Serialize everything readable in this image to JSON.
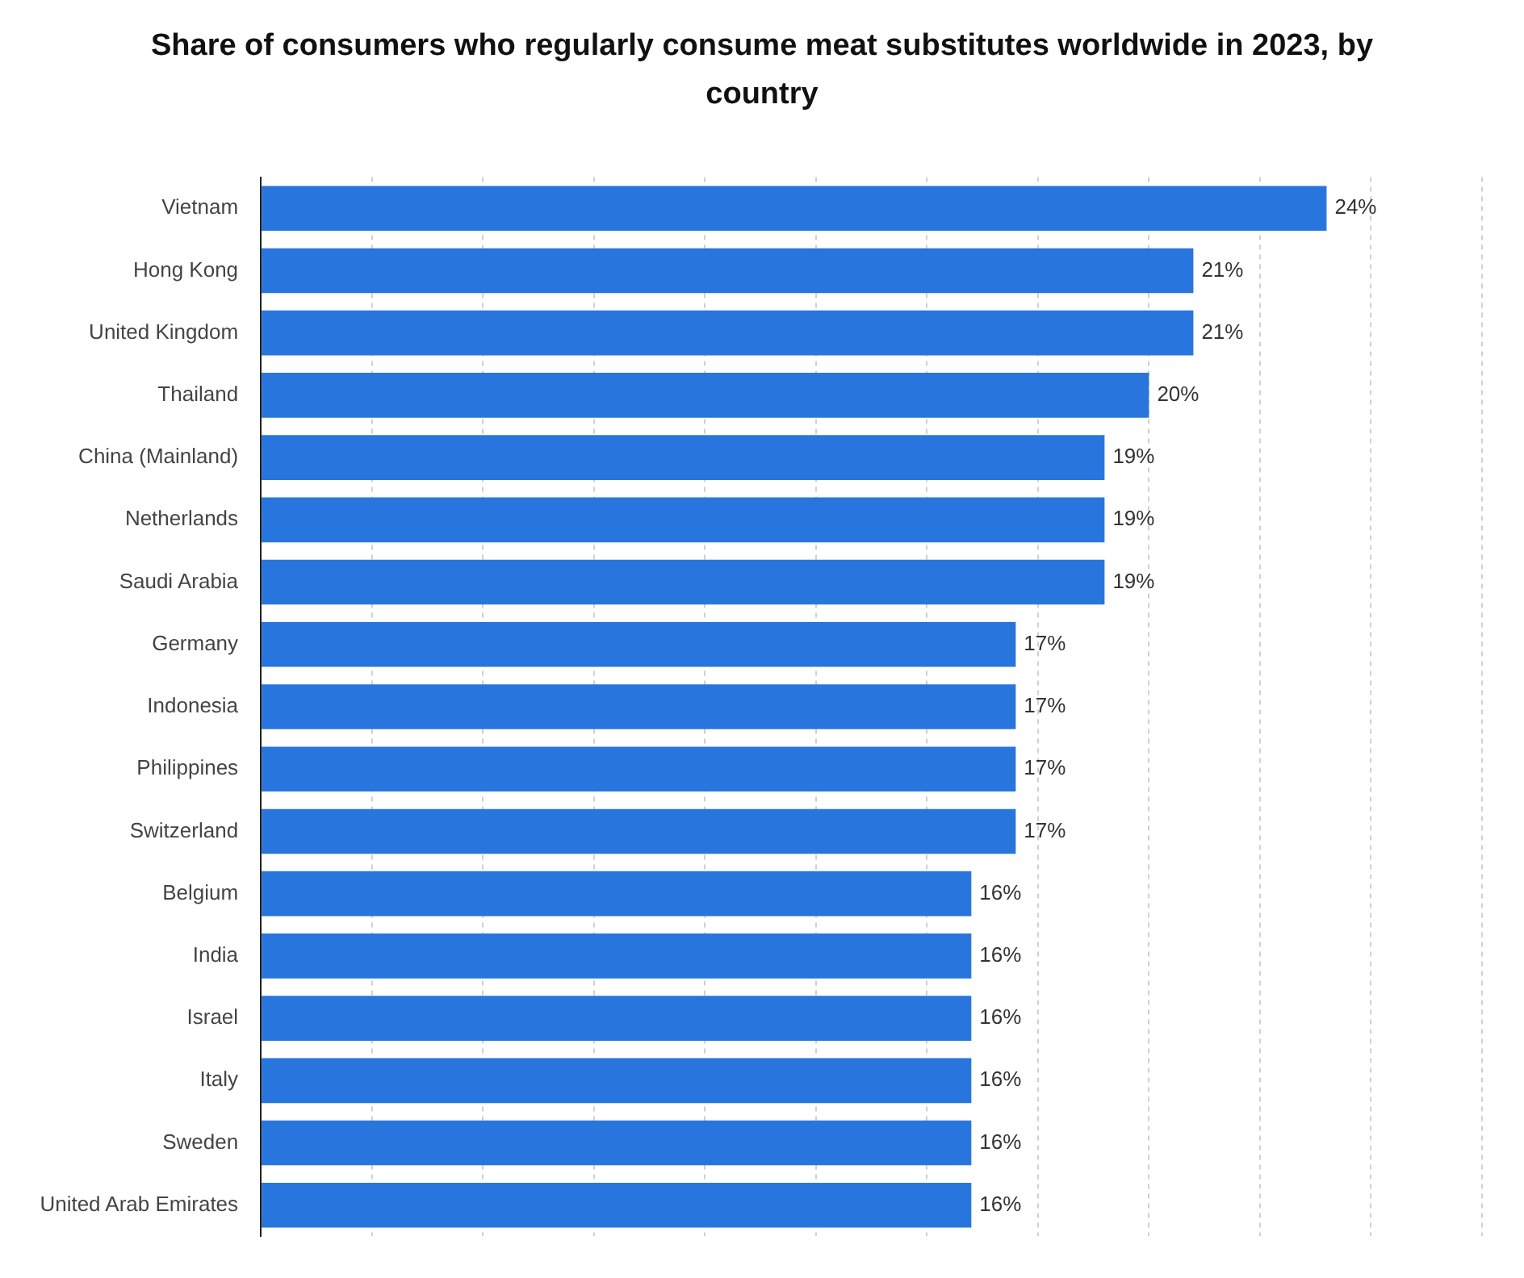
{
  "chart_data": {
    "type": "bar",
    "orientation": "horizontal",
    "title": "Share of consumers who regularly consume meat substitutes worldwide in 2023, by country",
    "categories": [
      "Vietnam",
      "Hong Kong",
      "United Kingdom",
      "Thailand",
      "China (Mainland)",
      "Netherlands",
      "Saudi Arabia",
      "Germany",
      "Indonesia",
      "Philippines",
      "Switzerland",
      "Belgium",
      "India",
      "Israel",
      "Italy",
      "Sweden",
      "United Arab Emirates"
    ],
    "values": [
      24,
      21,
      21,
      20,
      19,
      19,
      19,
      17,
      17,
      17,
      17,
      16,
      16,
      16,
      16,
      16,
      16
    ],
    "value_labels": [
      "24%",
      "21%",
      "21%",
      "20%",
      "19%",
      "19%",
      "19%",
      "17%",
      "17%",
      "17%",
      "17%",
      "16%",
      "16%",
      "16%",
      "16%",
      "16%",
      "16%"
    ],
    "color": "#2876dd",
    "xlim": [
      0,
      27.5
    ],
    "xticks": [
      {
        "value": 0,
        "label": null
      },
      {
        "value": 2.5,
        "label": null
      },
      {
        "value": 5,
        "label": null
      },
      {
        "value": 7.5,
        "label": null
      },
      {
        "value": 10,
        "label": null
      },
      {
        "value": 12.5,
        "label": null
      },
      {
        "value": 15,
        "label": null
      },
      {
        "value": 17.5,
        "label": null
      },
      {
        "value": 20,
        "label": null
      },
      {
        "value": 22.5,
        "label": null
      },
      {
        "value": 25,
        "label": null
      },
      {
        "value": 27.5,
        "label": null
      }
    ],
    "grid": "x",
    "tick_labels": "y"
  }
}
